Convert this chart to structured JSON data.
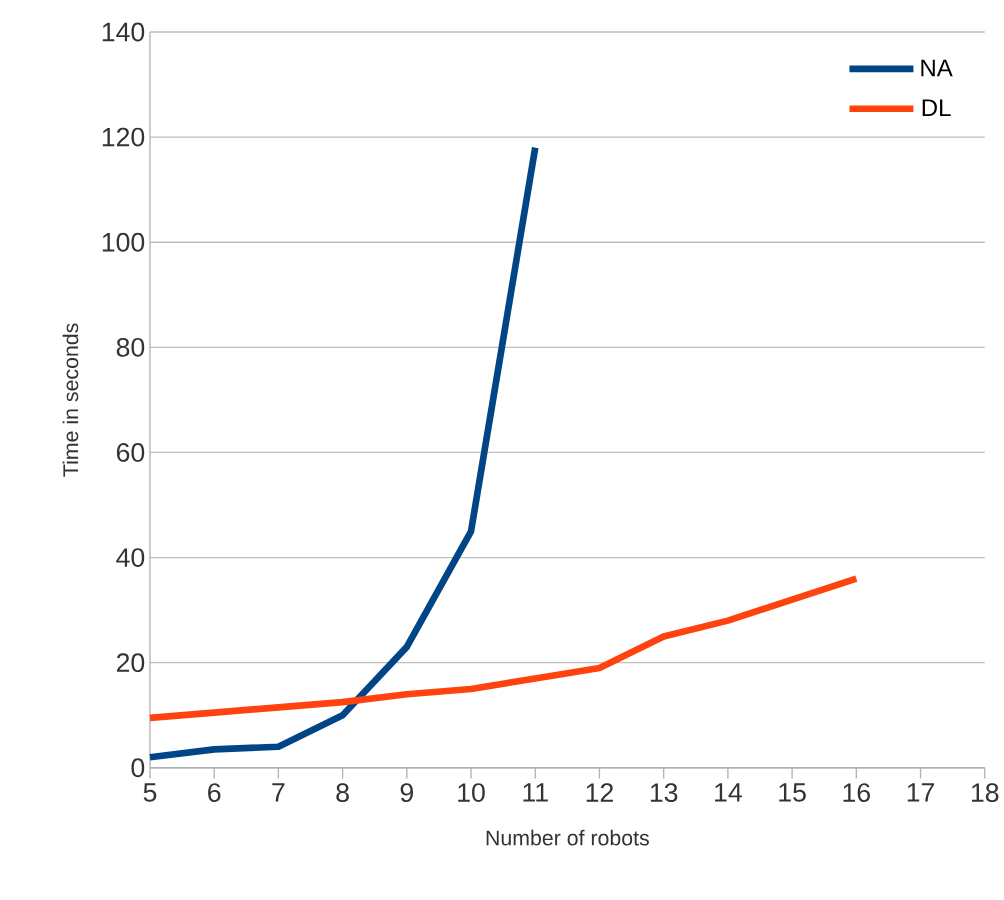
{
  "chart_data": {
    "type": "line",
    "xlabel": "Number of robots",
    "ylabel": "Time in seconds",
    "xlim": [
      5,
      18
    ],
    "xticks": [
      5,
      6,
      7,
      8,
      9,
      10,
      11,
      12,
      13,
      14,
      15,
      16,
      17,
      18
    ],
    "ylim": [
      0,
      140
    ],
    "yticks": [
      0,
      20,
      40,
      60,
      80,
      100,
      120,
      140
    ],
    "grid": "y",
    "legend": "top right",
    "marker": "none",
    "line_style": "solid",
    "series": [
      {
        "name": "NA",
        "color": "#004586",
        "x": [
          5,
          6,
          7,
          8,
          9,
          10,
          11
        ],
        "values": [
          2,
          3.5,
          4,
          10,
          23,
          45,
          118
        ]
      },
      {
        "name": "DL",
        "color": "#ff420e",
        "x": [
          5,
          6,
          7,
          8,
          9,
          10,
          11,
          12,
          13,
          14,
          15,
          16
        ],
        "values": [
          9.5,
          10.5,
          11.5,
          12.5,
          14,
          15,
          17,
          19,
          25,
          28,
          32,
          36
        ]
      }
    ]
  }
}
